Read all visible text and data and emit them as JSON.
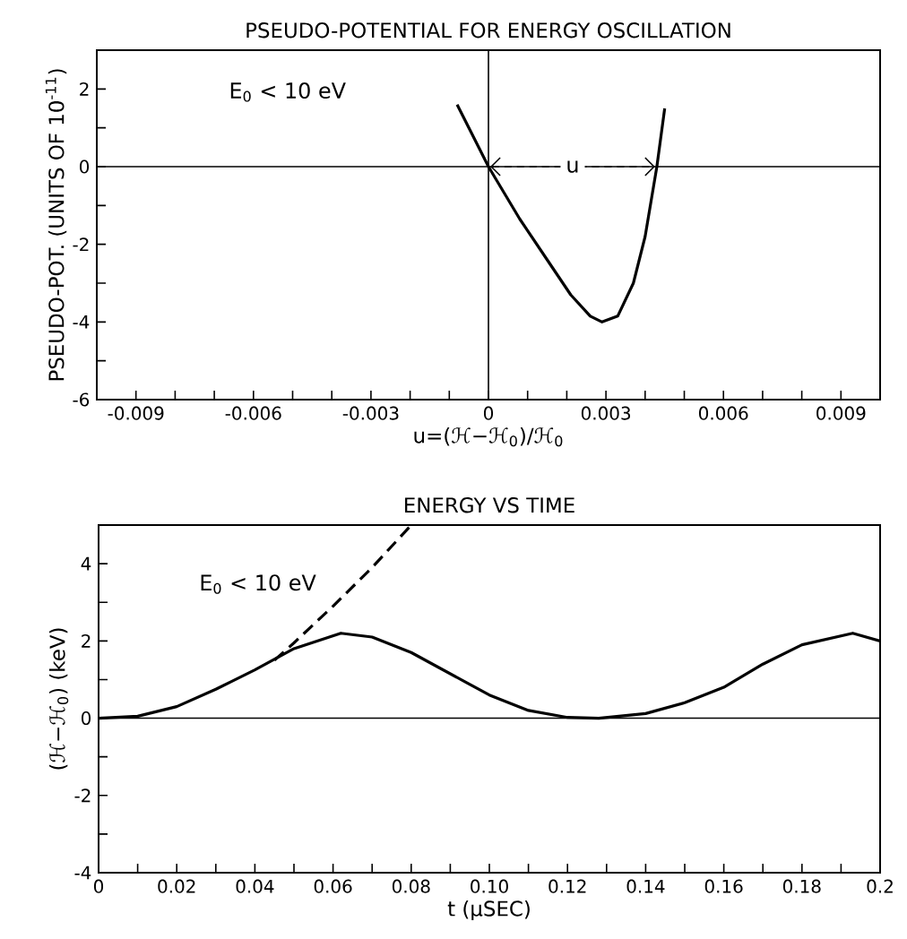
{
  "chart_data": [
    {
      "type": "line",
      "title": "PSEUDO-POTENTIAL FOR ENERGY OSCILLATION",
      "xlabel": "u=(ℋ−ℋ$_{0}$)/ℋ$_{0}$",
      "ylabel": "PSEUDO-POT. (UNITS OF 10$^{-11}$)",
      "xlim": [
        -0.01,
        0.01
      ],
      "ylim": [
        -6,
        3
      ],
      "xticks": [
        -0.009,
        {
          "value": -0.008,
          "label": null
        },
        {
          "value": -0.007,
          "label": null
        },
        -0.006,
        {
          "value": -0.005,
          "label": null
        },
        {
          "value": -0.004,
          "label": null
        },
        -0.003,
        {
          "value": -0.002,
          "label": null
        },
        {
          "value": -0.001,
          "label": null
        },
        0,
        {
          "value": 0.001,
          "label": null
        },
        {
          "value": 0.002,
          "label": null
        },
        0.003,
        {
          "value": 0.004,
          "label": null
        },
        {
          "value": 0.005,
          "label": null
        },
        0.006,
        {
          "value": 0.007,
          "label": null
        },
        {
          "value": 0.008,
          "label": null
        },
        0.009
      ],
      "yticks": [
        -6,
        {
          "value": -5,
          "label": null
        },
        -4,
        {
          "value": -3,
          "label": null
        },
        -2,
        {
          "value": -1,
          "label": null
        },
        0,
        {
          "value": 1,
          "label": null
        },
        2
      ],
      "series": [
        {
          "color": "#000000",
          "line_style": "solid",
          "x": [
            -0.0008,
            -0.0003,
            0,
            0.0008,
            0.0015,
            0.0021,
            0.0026,
            0.0029,
            0.0033,
            0.0037,
            0.004,
            0.0043,
            0.0045
          ],
          "values": [
            1.6,
            0.6,
            0,
            -1.35,
            -2.4,
            -3.3,
            -3.85,
            -4.0,
            -3.85,
            -3.0,
            -1.8,
            0,
            1.5
          ]
        }
      ],
      "ref_lines": [
        {
          "axis": "y",
          "value": 0
        },
        {
          "axis": "x",
          "value": 0
        }
      ],
      "annotations": [
        "E$_{0}$ < 10 eV",
        {
          "text": "u",
          "x": 0.00215,
          "y": 0
        }
      ]
    },
    {
      "type": "line",
      "title": "ENERGY VS TIME",
      "xlabel": "t (μSEC)",
      "ylabel": "(ℋ−ℋ$_{0}$)  (keV)",
      "xlim": [
        0,
        0.2
      ],
      "ylim": [
        -4,
        5
      ],
      "xticks": [
        0,
        {
          "value": 0.01,
          "label": null
        },
        0.02,
        {
          "value": 0.03,
          "label": null
        },
        0.04,
        {
          "value": 0.05,
          "label": null
        },
        0.06,
        {
          "value": 0.07,
          "label": null
        },
        0.08,
        {
          "value": 0.09,
          "label": null
        },
        {
          "value": 0.1,
          "label": "0.10"
        },
        {
          "value": 0.11,
          "label": null
        },
        0.12,
        {
          "value": 0.13,
          "label": null
        },
        0.14,
        {
          "value": 0.15,
          "label": null
        },
        0.16,
        {
          "value": 0.17,
          "label": null
        },
        0.18,
        {
          "value": 0.19,
          "label": null
        },
        0.2
      ],
      "yticks": [
        -4,
        {
          "value": -3,
          "label": null
        },
        -2,
        {
          "value": -1,
          "label": null
        },
        0,
        {
          "value": 1,
          "label": null
        },
        2,
        {
          "value": 3,
          "label": null
        },
        4
      ],
      "series": [
        {
          "color": "#000000",
          "line_style": "solid",
          "x": [
            0,
            0.01,
            0.02,
            0.03,
            0.04,
            0.05,
            0.062,
            0.07,
            0.08,
            0.09,
            0.1,
            0.11,
            0.12,
            0.128,
            0.14,
            0.15,
            0.16,
            0.17,
            0.18,
            0.193,
            0.2
          ],
          "values": [
            0,
            0.05,
            0.3,
            0.75,
            1.25,
            1.8,
            2.2,
            2.1,
            1.7,
            1.15,
            0.6,
            0.2,
            0.02,
            0,
            0.12,
            0.4,
            0.8,
            1.4,
            1.9,
            2.2,
            2.0
          ]
        },
        {
          "color": "#000000",
          "line_style": "dashed",
          "x": [
            0.045,
            0.05,
            0.06,
            0.07,
            0.08
          ],
          "values": [
            1.5,
            1.95,
            2.9,
            3.9,
            5.0
          ]
        }
      ],
      "ref_lines": [
        {
          "axis": "y",
          "value": 0
        }
      ],
      "annotations": [
        "E$_{0}$ < 10 eV"
      ]
    }
  ]
}
